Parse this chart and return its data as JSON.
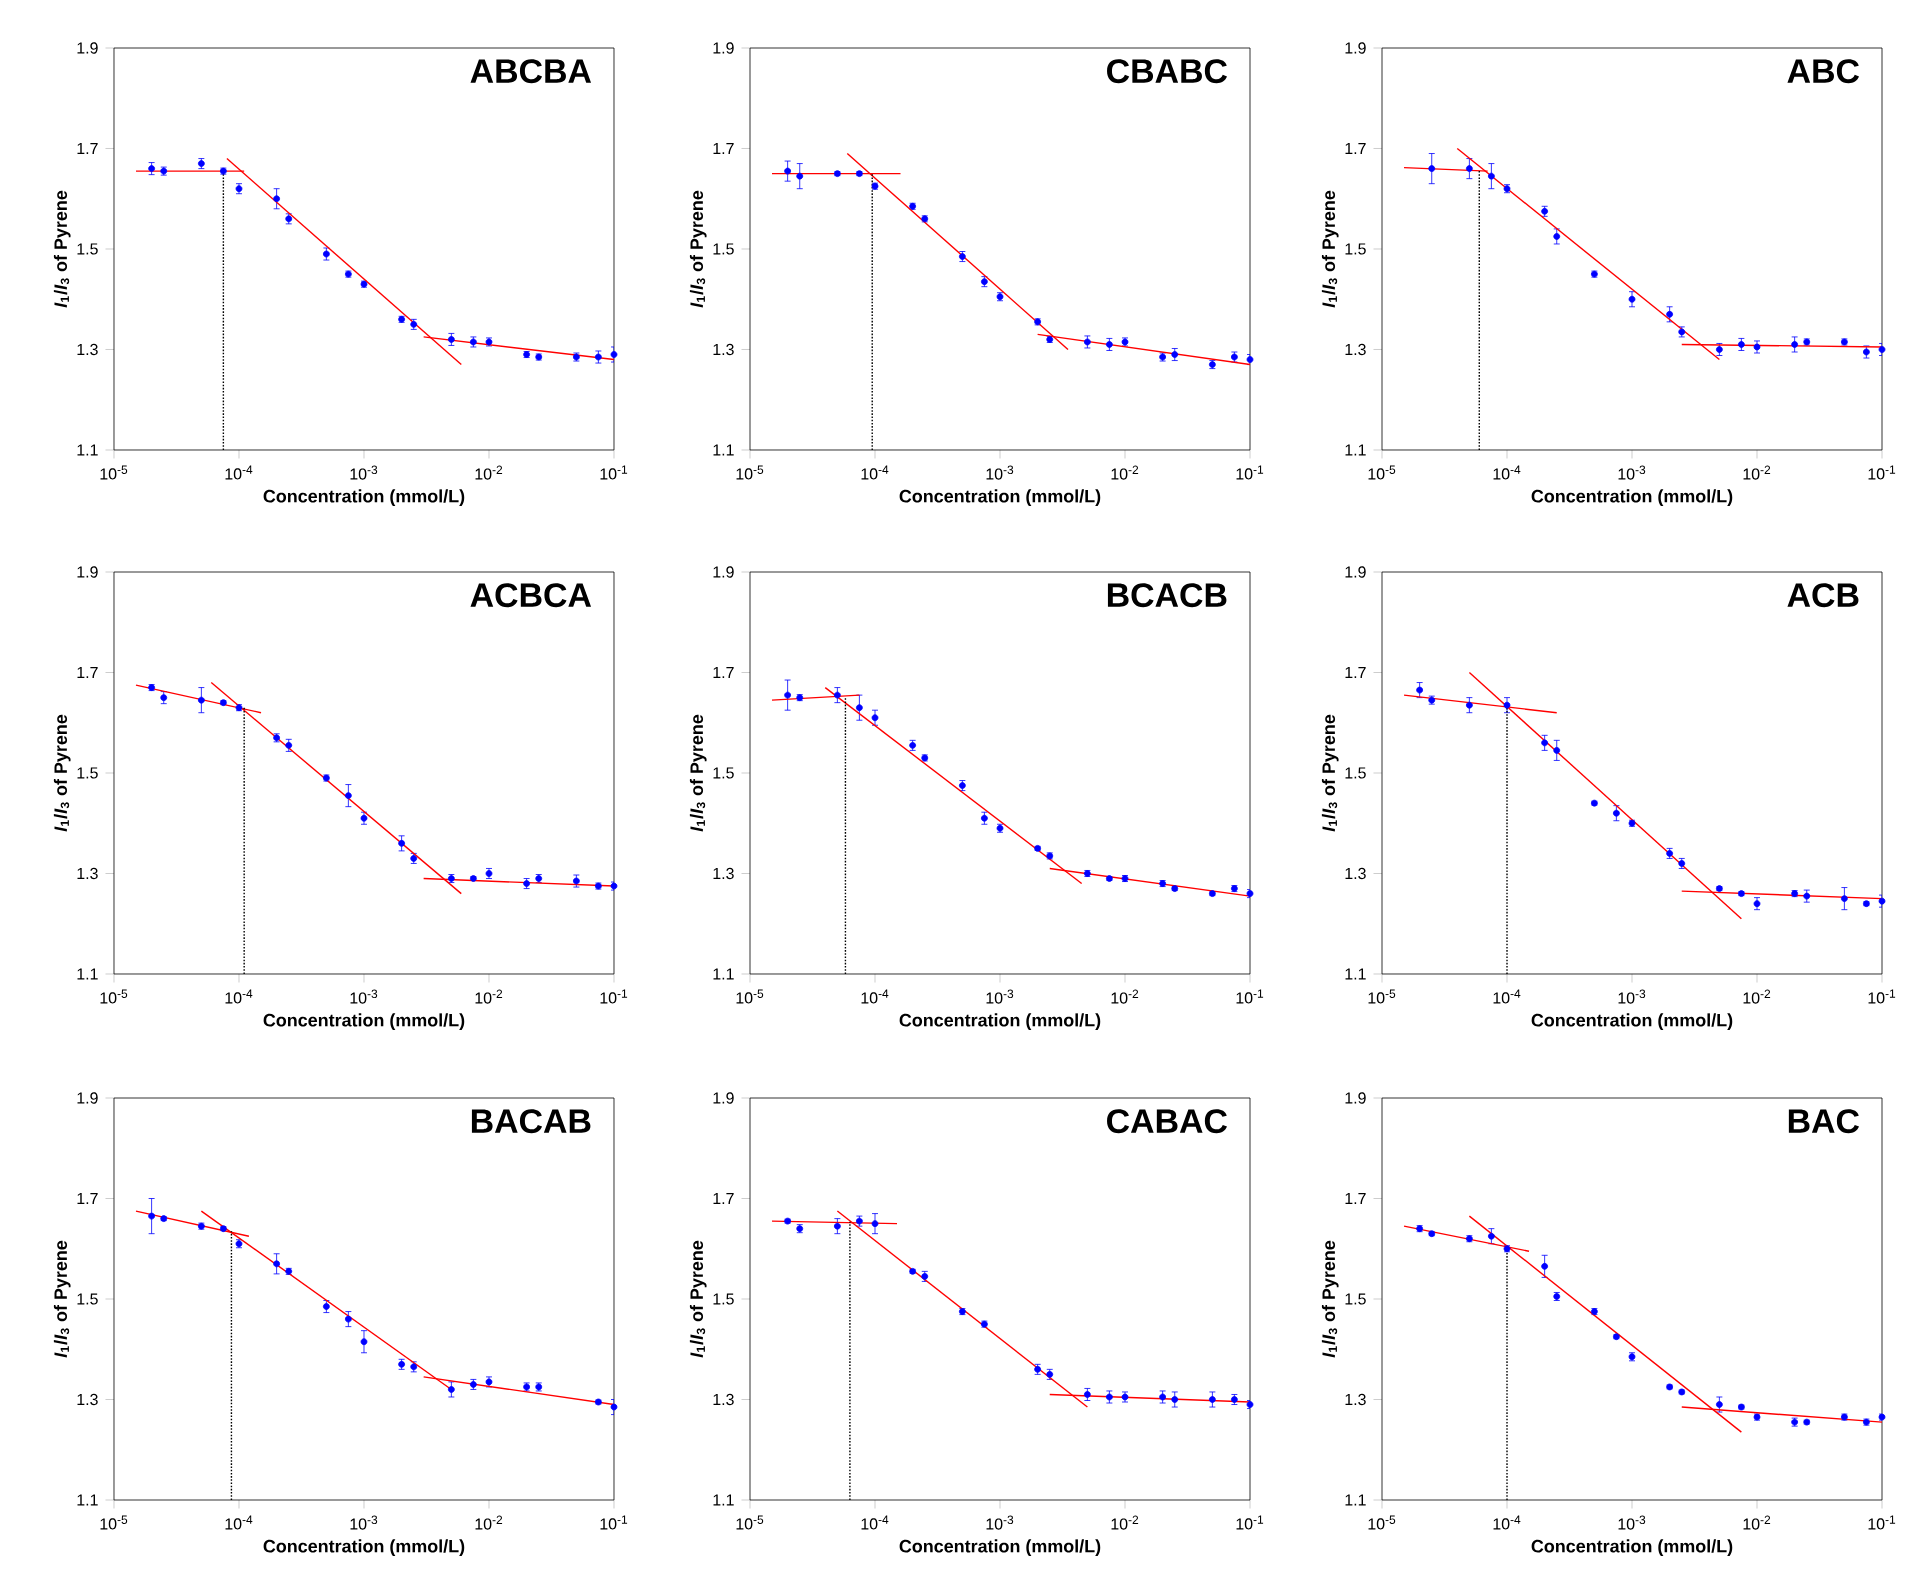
{
  "chart_data": [
    {
      "type": "scatter",
      "title": "ABCBA",
      "xlabel": "Concentration (mmol/L)",
      "ylabel": "*I*$_{1}$/*I*$_{3}$ of Pyrene",
      "log": "x",
      "grid": false,
      "xlim": [
        1e-05,
        0.1
      ],
      "ylim": [
        1.1,
        1.9
      ],
      "xticks": [
        {
          "value": 1e-05,
          "label": "10$^{-5}$"
        },
        {
          "value": 0.0001,
          "label": "10$^{-4}$"
        },
        {
          "value": 0.001,
          "label": "10$^{-3}$"
        },
        {
          "value": 0.01,
          "label": "10$^{-2}$"
        },
        {
          "value": 0.1,
          "label": "10$^{-1}$"
        }
      ],
      "yticks": [
        1.1,
        1.3,
        1.5,
        1.7,
        1.9
      ],
      "series": [
        {
          "color": "#0000ff",
          "x": [
            2e-05,
            2.5e-05,
            5e-05,
            7.5e-05,
            0.0001,
            0.0002,
            0.00025,
            0.0005,
            0.00075,
            0.001,
            0.002,
            0.0025,
            0.005,
            0.0075,
            0.01,
            0.02,
            0.025,
            0.05,
            0.075,
            0.1
          ],
          "values": [
            1.66,
            1.655,
            1.67,
            1.655,
            1.62,
            1.6,
            1.56,
            1.49,
            1.45,
            1.43,
            1.36,
            1.35,
            1.32,
            1.315,
            1.315,
            1.29,
            1.285,
            1.285,
            1.285,
            1.29
          ],
          "errors": [
            0.012,
            0.008,
            0.01,
            0.006,
            0.01,
            0.02,
            0.01,
            0.012,
            0.006,
            0.006,
            0.006,
            0.01,
            0.012,
            0.01,
            0.008,
            0.006,
            0.006,
            0.008,
            0.012,
            0.015
          ]
        },
        {
          "type": "line",
          "color": "#ff0000",
          "x": [
            1.5e-05,
            0.00011
          ],
          "values": [
            1.655,
            1.655
          ]
        },
        {
          "type": "line",
          "color": "#ff0000",
          "x": [
            8e-05,
            0.006
          ],
          "values": [
            1.68,
            1.27
          ]
        },
        {
          "type": "line",
          "color": "#ff0000",
          "x": [
            0.003,
            0.1
          ],
          "values": [
            1.325,
            1.28
          ]
        },
        {
          "type": "line",
          "color": "#000000",
          "line_style": "dotted",
          "x": [
            7.5e-05,
            7.5e-05
          ],
          "values": [
            1.1,
            1.655
          ]
        }
      ]
    },
    {
      "type": "scatter",
      "title": "CBABC",
      "xlabel": "Concentration (mmol/L)",
      "ylabel": "*I*$_{1}$/*I*$_{3}$ of Pyrene",
      "log": "x",
      "grid": false,
      "xlim": [
        1e-05,
        0.1
      ],
      "ylim": [
        1.1,
        1.9
      ],
      "xticks": [
        {
          "value": 1e-05,
          "label": "10$^{-5}$"
        },
        {
          "value": 0.0001,
          "label": "10$^{-4}$"
        },
        {
          "value": 0.001,
          "label": "10$^{-3}$"
        },
        {
          "value": 0.01,
          "label": "10$^{-2}$"
        },
        {
          "value": 0.1,
          "label": "10$^{-1}$"
        }
      ],
      "yticks": [
        1.1,
        1.3,
        1.5,
        1.7,
        1.9
      ],
      "series": [
        {
          "color": "#0000ff",
          "x": [
            2e-05,
            2.5e-05,
            5e-05,
            7.5e-05,
            0.0001,
            0.0002,
            0.00025,
            0.0005,
            0.00075,
            0.001,
            0.002,
            0.0025,
            0.005,
            0.0075,
            0.01,
            0.02,
            0.025,
            0.05,
            0.075,
            0.1
          ],
          "values": [
            1.655,
            1.645,
            1.65,
            1.65,
            1.625,
            1.585,
            1.56,
            1.485,
            1.435,
            1.405,
            1.355,
            1.32,
            1.315,
            1.31,
            1.315,
            1.285,
            1.29,
            1.27,
            1.285,
            1.28
          ],
          "errors": [
            0.02,
            0.025,
            0.004,
            0.004,
            0.006,
            0.006,
            0.006,
            0.01,
            0.01,
            0.008,
            0.006,
            0.006,
            0.012,
            0.012,
            0.008,
            0.008,
            0.012,
            0.008,
            0.01,
            0.01
          ]
        },
        {
          "type": "line",
          "color": "#ff0000",
          "x": [
            1.5e-05,
            0.00016
          ],
          "values": [
            1.65,
            1.65
          ]
        },
        {
          "type": "line",
          "color": "#ff0000",
          "x": [
            6e-05,
            0.0035
          ],
          "values": [
            1.69,
            1.3
          ]
        },
        {
          "type": "line",
          "color": "#ff0000",
          "x": [
            0.002,
            0.1
          ],
          "values": [
            1.33,
            1.27
          ]
        },
        {
          "type": "line",
          "color": "#000000",
          "line_style": "dotted",
          "x": [
            9.5e-05,
            9.5e-05
          ],
          "values": [
            1.1,
            1.65
          ]
        }
      ]
    },
    {
      "type": "scatter",
      "title": "ABC",
      "xlabel": "Concentration (mmol/L)",
      "ylabel": "*I*$_{1}$/*I*$_{3}$ of Pyrene",
      "log": "x",
      "grid": false,
      "xlim": [
        1e-05,
        0.1
      ],
      "ylim": [
        1.1,
        1.9
      ],
      "xticks": [
        {
          "value": 1e-05,
          "label": "10$^{-5}$"
        },
        {
          "value": 0.0001,
          "label": "10$^{-4}$"
        },
        {
          "value": 0.001,
          "label": "10$^{-3}$"
        },
        {
          "value": 0.01,
          "label": "10$^{-2}$"
        },
        {
          "value": 0.1,
          "label": "10$^{-1}$"
        }
      ],
      "yticks": [
        1.1,
        1.3,
        1.5,
        1.7,
        1.9
      ],
      "series": [
        {
          "color": "#0000ff",
          "x": [
            2.5e-05,
            5e-05,
            7.5e-05,
            0.0001,
            0.0002,
            0.00025,
            0.0005,
            0.001,
            0.002,
            0.0025,
            0.005,
            0.0075,
            0.01,
            0.02,
            0.025,
            0.05,
            0.075,
            0.1
          ],
          "values": [
            1.66,
            1.66,
            1.645,
            1.62,
            1.575,
            1.525,
            1.45,
            1.4,
            1.37,
            1.335,
            1.3,
            1.31,
            1.305,
            1.31,
            1.315,
            1.315,
            1.295,
            1.3
          ],
          "errors": [
            0.03,
            0.02,
            0.025,
            0.008,
            0.01,
            0.015,
            0.006,
            0.015,
            0.015,
            0.01,
            0.012,
            0.012,
            0.012,
            0.015,
            0.006,
            0.006,
            0.012,
            0.012
          ]
        },
        {
          "type": "line",
          "color": "#ff0000",
          "x": [
            1.5e-05,
            7e-05
          ],
          "values": [
            1.662,
            1.655
          ]
        },
        {
          "type": "line",
          "color": "#ff0000",
          "x": [
            4e-05,
            0.005
          ],
          "values": [
            1.7,
            1.28
          ]
        },
        {
          "type": "line",
          "color": "#ff0000",
          "x": [
            0.0025,
            0.1
          ],
          "values": [
            1.31,
            1.305
          ]
        },
        {
          "type": "line",
          "color": "#000000",
          "line_style": "dotted",
          "x": [
            6e-05,
            6e-05
          ],
          "values": [
            1.1,
            1.657
          ]
        }
      ]
    },
    {
      "type": "scatter",
      "title": "ACBCA",
      "xlabel": "Concentration (mmol/L)",
      "ylabel": "*I*$_{1}$/*I*$_{3}$ of Pyrene",
      "log": "x",
      "grid": false,
      "xlim": [
        1e-05,
        0.1
      ],
      "ylim": [
        1.1,
        1.9
      ],
      "xticks": [
        {
          "value": 1e-05,
          "label": "10$^{-5}$"
        },
        {
          "value": 0.0001,
          "label": "10$^{-4}$"
        },
        {
          "value": 0.001,
          "label": "10$^{-3}$"
        },
        {
          "value": 0.01,
          "label": "10$^{-2}$"
        },
        {
          "value": 0.1,
          "label": "10$^{-1}$"
        }
      ],
      "yticks": [
        1.1,
        1.3,
        1.5,
        1.7,
        1.9
      ],
      "series": [
        {
          "color": "#0000ff",
          "x": [
            2e-05,
            2.5e-05,
            5e-05,
            7.5e-05,
            0.0001,
            0.0002,
            0.00025,
            0.0005,
            0.00075,
            0.001,
            0.002,
            0.0025,
            0.005,
            0.0075,
            0.01,
            0.02,
            0.025,
            0.05,
            0.075,
            0.1
          ],
          "values": [
            1.67,
            1.65,
            1.645,
            1.64,
            1.63,
            1.57,
            1.555,
            1.49,
            1.455,
            1.41,
            1.36,
            1.33,
            1.29,
            1.29,
            1.3,
            1.28,
            1.29,
            1.285,
            1.275,
            1.275
          ],
          "errors": [
            0.006,
            0.012,
            0.025,
            0.004,
            0.006,
            0.008,
            0.012,
            0.006,
            0.022,
            0.012,
            0.015,
            0.01,
            0.008,
            0.004,
            0.01,
            0.01,
            0.008,
            0.012,
            0.006,
            0.008
          ]
        },
        {
          "type": "line",
          "color": "#ff0000",
          "x": [
            1.5e-05,
            0.00015
          ],
          "values": [
            1.675,
            1.62
          ]
        },
        {
          "type": "line",
          "color": "#ff0000",
          "x": [
            6e-05,
            0.006
          ],
          "values": [
            1.68,
            1.26
          ]
        },
        {
          "type": "line",
          "color": "#ff0000",
          "x": [
            0.003,
            0.1
          ],
          "values": [
            1.29,
            1.275
          ]
        },
        {
          "type": "line",
          "color": "#000000",
          "line_style": "dotted",
          "x": [
            0.00011,
            0.00011
          ],
          "values": [
            1.1,
            1.63
          ]
        }
      ]
    },
    {
      "type": "scatter",
      "title": "BCACB",
      "xlabel": "Concentration (mmol/L)",
      "ylabel": "*I*$_{1}$/*I*$_{3}$ of Pyrene",
      "log": "x",
      "grid": false,
      "xlim": [
        1e-05,
        0.1
      ],
      "ylim": [
        1.1,
        1.9
      ],
      "xticks": [
        {
          "value": 1e-05,
          "label": "10$^{-5}$"
        },
        {
          "value": 0.0001,
          "label": "10$^{-4}$"
        },
        {
          "value": 0.001,
          "label": "10$^{-3}$"
        },
        {
          "value": 0.01,
          "label": "10$^{-2}$"
        },
        {
          "value": 0.1,
          "label": "10$^{-1}$"
        }
      ],
      "yticks": [
        1.1,
        1.3,
        1.5,
        1.7,
        1.9
      ],
      "series": [
        {
          "color": "#0000ff",
          "x": [
            2e-05,
            2.5e-05,
            5e-05,
            7.5e-05,
            0.0001,
            0.0002,
            0.00025,
            0.0005,
            0.00075,
            0.001,
            0.002,
            0.0025,
            0.005,
            0.0075,
            0.01,
            0.02,
            0.025,
            0.05,
            0.075,
            0.1
          ],
          "values": [
            1.655,
            1.65,
            1.655,
            1.63,
            1.61,
            1.555,
            1.53,
            1.475,
            1.41,
            1.39,
            1.35,
            1.335,
            1.3,
            1.29,
            1.29,
            1.28,
            1.27,
            1.26,
            1.27,
            1.26
          ],
          "errors": [
            0.03,
            0.006,
            0.015,
            0.025,
            0.015,
            0.01,
            0.006,
            0.01,
            0.012,
            0.008,
            0.004,
            0.006,
            0.006,
            0.004,
            0.006,
            0.006,
            0.004,
            0.004,
            0.006,
            0.008
          ]
        },
        {
          "type": "line",
          "color": "#ff0000",
          "x": [
            1.5e-05,
            7.5e-05
          ],
          "values": [
            1.645,
            1.655
          ]
        },
        {
          "type": "line",
          "color": "#ff0000",
          "x": [
            4e-05,
            0.0045
          ],
          "values": [
            1.67,
            1.28
          ]
        },
        {
          "type": "line",
          "color": "#ff0000",
          "x": [
            0.0025,
            0.1
          ],
          "values": [
            1.31,
            1.255
          ]
        },
        {
          "type": "line",
          "color": "#000000",
          "line_style": "dotted",
          "x": [
            5.8e-05,
            5.8e-05
          ],
          "values": [
            1.1,
            1.652
          ]
        }
      ]
    },
    {
      "type": "scatter",
      "title": "ACB",
      "xlabel": "Concentration (mmol/L)",
      "ylabel": "*I*$_{1}$/*I*$_{3}$ of Pyrene",
      "log": "x",
      "grid": false,
      "xlim": [
        1e-05,
        0.1
      ],
      "ylim": [
        1.1,
        1.9
      ],
      "xticks": [
        {
          "value": 1e-05,
          "label": "10$^{-5}$"
        },
        {
          "value": 0.0001,
          "label": "10$^{-4}$"
        },
        {
          "value": 0.001,
          "label": "10$^{-3}$"
        },
        {
          "value": 0.01,
          "label": "10$^{-2}$"
        },
        {
          "value": 0.1,
          "label": "10$^{-1}$"
        }
      ],
      "yticks": [
        1.1,
        1.3,
        1.5,
        1.7,
        1.9
      ],
      "series": [
        {
          "color": "#0000ff",
          "x": [
            2e-05,
            2.5e-05,
            5e-05,
            0.0001,
            0.0002,
            0.00025,
            0.0005,
            0.00075,
            0.001,
            0.002,
            0.0025,
            0.005,
            0.0075,
            0.01,
            0.02,
            0.025,
            0.05,
            0.075,
            0.1
          ],
          "values": [
            1.665,
            1.645,
            1.635,
            1.635,
            1.56,
            1.545,
            1.44,
            1.42,
            1.4,
            1.34,
            1.32,
            1.27,
            1.26,
            1.24,
            1.26,
            1.255,
            1.25,
            1.24,
            1.245
          ],
          "errors": [
            0.015,
            0.008,
            0.015,
            0.015,
            0.015,
            0.02,
            0.004,
            0.015,
            0.006,
            0.01,
            0.01,
            0.004,
            0.004,
            0.012,
            0.006,
            0.012,
            0.022,
            0.004,
            0.012
          ]
        },
        {
          "type": "line",
          "color": "#ff0000",
          "x": [
            1.5e-05,
            0.00025
          ],
          "values": [
            1.655,
            1.62
          ]
        },
        {
          "type": "line",
          "color": "#ff0000",
          "x": [
            5e-05,
            0.0075
          ],
          "values": [
            1.7,
            1.21
          ]
        },
        {
          "type": "line",
          "color": "#ff0000",
          "x": [
            0.0025,
            0.1
          ],
          "values": [
            1.265,
            1.25
          ]
        },
        {
          "type": "line",
          "color": "#000000",
          "line_style": "dotted",
          "x": [
            0.0001,
            0.0001
          ],
          "values": [
            1.1,
            1.63
          ]
        }
      ]
    },
    {
      "type": "scatter",
      "title": "BACAB",
      "xlabel": "Concentration (mmol/L)",
      "ylabel": "*I*$_{1}$/*I*$_{3}$ of Pyrene",
      "log": "x",
      "grid": false,
      "xlim": [
        1e-05,
        0.1
      ],
      "ylim": [
        1.1,
        1.9
      ],
      "xticks": [
        {
          "value": 1e-05,
          "label": "10$^{-5}$"
        },
        {
          "value": 0.0001,
          "label": "10$^{-4}$"
        },
        {
          "value": 0.001,
          "label": "10$^{-3}$"
        },
        {
          "value": 0.01,
          "label": "10$^{-2}$"
        },
        {
          "value": 0.1,
          "label": "10$^{-1}$"
        }
      ],
      "yticks": [
        1.1,
        1.3,
        1.5,
        1.7,
        1.9
      ],
      "series": [
        {
          "color": "#0000ff",
          "x": [
            2e-05,
            2.5e-05,
            5e-05,
            7.5e-05,
            0.0001,
            0.0002,
            0.00025,
            0.0005,
            0.00075,
            0.001,
            0.002,
            0.0025,
            0.005,
            0.0075,
            0.01,
            0.02,
            0.025,
            0.075,
            0.1
          ],
          "values": [
            1.665,
            1.66,
            1.645,
            1.64,
            1.61,
            1.57,
            1.555,
            1.485,
            1.46,
            1.415,
            1.37,
            1.365,
            1.32,
            1.33,
            1.335,
            1.325,
            1.325,
            1.295,
            1.285
          ],
          "errors": [
            0.035,
            0.004,
            0.006,
            0.004,
            0.008,
            0.02,
            0.006,
            0.012,
            0.015,
            0.022,
            0.01,
            0.01,
            0.015,
            0.01,
            0.01,
            0.008,
            0.008,
            0.004,
            0.015
          ]
        },
        {
          "type": "line",
          "color": "#ff0000",
          "x": [
            1.5e-05,
            0.00012
          ],
          "values": [
            1.675,
            1.625
          ]
        },
        {
          "type": "line",
          "color": "#ff0000",
          "x": [
            5e-05,
            0.005
          ],
          "values": [
            1.675,
            1.32
          ]
        },
        {
          "type": "line",
          "color": "#ff0000",
          "x": [
            0.003,
            0.1
          ],
          "values": [
            1.345,
            1.29
          ]
        },
        {
          "type": "line",
          "color": "#000000",
          "line_style": "dotted",
          "x": [
            8.7e-05,
            8.7e-05
          ],
          "values": [
            1.1,
            1.635
          ]
        }
      ]
    },
    {
      "type": "scatter",
      "title": "CABAC",
      "xlabel": "Concentration (mmol/L)",
      "ylabel": "*I*$_{1}$/*I*$_{3}$ of Pyrene",
      "log": "x",
      "grid": false,
      "xlim": [
        1e-05,
        0.1
      ],
      "ylim": [
        1.1,
        1.9
      ],
      "xticks": [
        {
          "value": 1e-05,
          "label": "10$^{-5}$"
        },
        {
          "value": 0.0001,
          "label": "10$^{-4}$"
        },
        {
          "value": 0.001,
          "label": "10$^{-3}$"
        },
        {
          "value": 0.01,
          "label": "10$^{-2}$"
        },
        {
          "value": 0.1,
          "label": "10$^{-1}$"
        }
      ],
      "yticks": [
        1.1,
        1.3,
        1.5,
        1.7,
        1.9
      ],
      "series": [
        {
          "color": "#0000ff",
          "x": [
            2e-05,
            2.5e-05,
            5e-05,
            7.5e-05,
            0.0001,
            0.0002,
            0.00025,
            0.0005,
            0.00075,
            0.002,
            0.0025,
            0.005,
            0.0075,
            0.01,
            0.02,
            0.025,
            0.05,
            0.075,
            0.1
          ],
          "values": [
            1.655,
            1.64,
            1.645,
            1.655,
            1.65,
            1.555,
            1.545,
            1.475,
            1.45,
            1.36,
            1.35,
            1.31,
            1.305,
            1.305,
            1.305,
            1.3,
            1.3,
            1.3,
            1.29
          ],
          "errors": [
            0.004,
            0.008,
            0.015,
            0.01,
            0.02,
            0.004,
            0.01,
            0.006,
            0.006,
            0.01,
            0.01,
            0.012,
            0.012,
            0.01,
            0.012,
            0.015,
            0.015,
            0.01,
            0.008
          ]
        },
        {
          "type": "line",
          "color": "#ff0000",
          "x": [
            1.5e-05,
            0.00015
          ],
          "values": [
            1.655,
            1.65
          ]
        },
        {
          "type": "line",
          "color": "#ff0000",
          "x": [
            5e-05,
            0.005
          ],
          "values": [
            1.675,
            1.285
          ]
        },
        {
          "type": "line",
          "color": "#ff0000",
          "x": [
            0.0025,
            0.1
          ],
          "values": [
            1.31,
            1.295
          ]
        },
        {
          "type": "line",
          "color": "#000000",
          "line_style": "dotted",
          "x": [
            6.3e-05,
            6.3e-05
          ],
          "values": [
            1.1,
            1.654
          ]
        }
      ]
    },
    {
      "type": "scatter",
      "title": "BAC",
      "xlabel": "Concentration (mmol/L)",
      "ylabel": "*I*$_{1}$/*I*$_{3}$ of Pyrene",
      "log": "x",
      "grid": false,
      "xlim": [
        1e-05,
        0.1
      ],
      "ylim": [
        1.1,
        1.9
      ],
      "xticks": [
        {
          "value": 1e-05,
          "label": "10$^{-5}$"
        },
        {
          "value": 0.0001,
          "label": "10$^{-4}$"
        },
        {
          "value": 0.001,
          "label": "10$^{-3}$"
        },
        {
          "value": 0.01,
          "label": "10$^{-2}$"
        },
        {
          "value": 0.1,
          "label": "10$^{-1}$"
        }
      ],
      "yticks": [
        1.1,
        1.3,
        1.5,
        1.7,
        1.9
      ],
      "series": [
        {
          "color": "#0000ff",
          "x": [
            2e-05,
            2.5e-05,
            5e-05,
            7.5e-05,
            0.0001,
            0.0002,
            0.00025,
            0.0005,
            0.00075,
            0.001,
            0.002,
            0.0025,
            0.005,
            0.0075,
            0.01,
            0.02,
            0.025,
            0.05,
            0.075,
            0.1
          ],
          "values": [
            1.64,
            1.63,
            1.62,
            1.625,
            1.6,
            1.565,
            1.505,
            1.475,
            1.425,
            1.385,
            1.325,
            1.315,
            1.29,
            1.285,
            1.265,
            1.255,
            1.255,
            1.265,
            1.255,
            1.265
          ],
          "errors": [
            0.006,
            0.004,
            0.006,
            0.015,
            0.006,
            0.022,
            0.008,
            0.006,
            0.004,
            0.008,
            0.004,
            0.004,
            0.015,
            0.004,
            0.006,
            0.008,
            0.004,
            0.006,
            0.006,
            0.006
          ]
        },
        {
          "type": "line",
          "color": "#ff0000",
          "x": [
            1.5e-05,
            0.00015
          ],
          "values": [
            1.645,
            1.595
          ]
        },
        {
          "type": "line",
          "color": "#ff0000",
          "x": [
            5e-05,
            0.0075
          ],
          "values": [
            1.665,
            1.235
          ]
        },
        {
          "type": "line",
          "color": "#ff0000",
          "x": [
            0.0025,
            0.1
          ],
          "values": [
            1.285,
            1.255
          ]
        },
        {
          "type": "line",
          "color": "#000000",
          "line_style": "dotted",
          "x": [
            0.0001,
            0.0001
          ],
          "values": [
            1.1,
            1.6
          ]
        }
      ]
    }
  ]
}
